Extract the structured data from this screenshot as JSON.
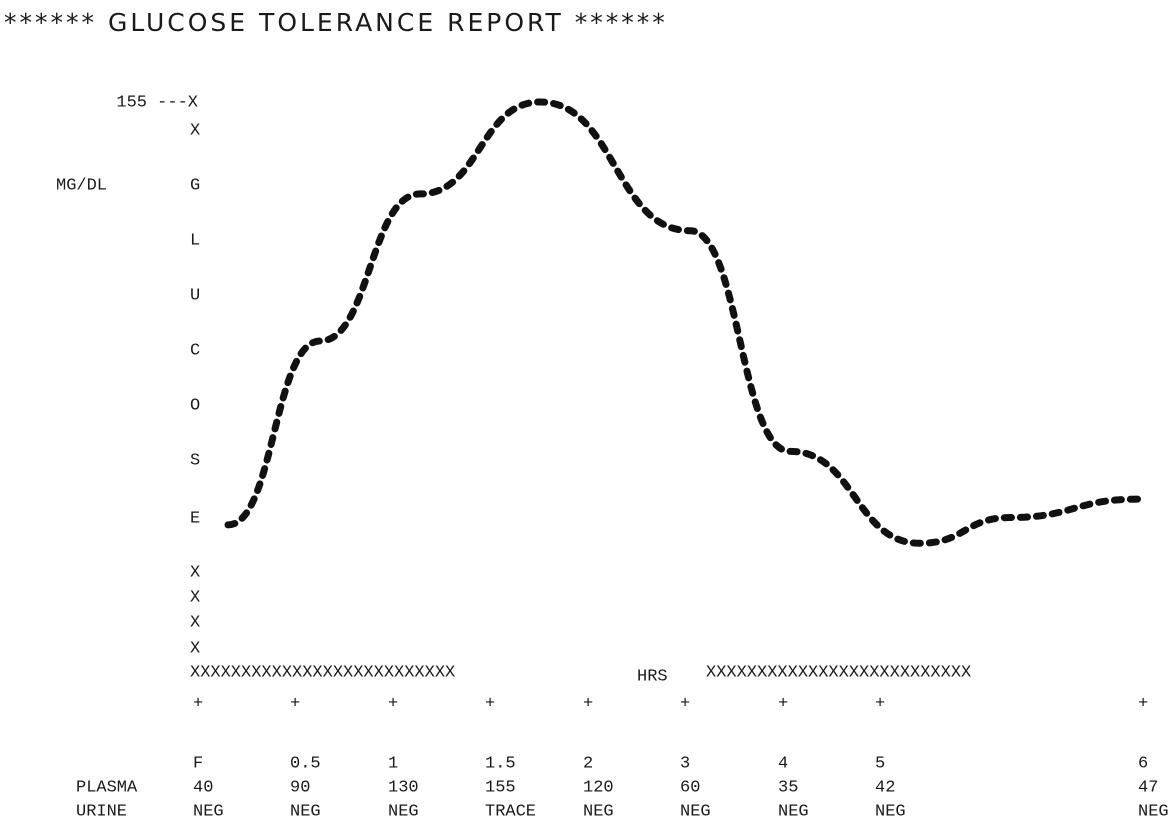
{
  "chart_data": {
    "type": "line",
    "title": "****** GLUCOSE TOLERANCE REPORT ******",
    "y_axis_label": "MG/DL",
    "y_axis_letters": [
      "X",
      "G",
      "L",
      "U",
      "C",
      "O",
      "S",
      "E",
      "X",
      "X",
      "X",
      "X"
    ],
    "x_axis_left": "XXXXXXXXXXXXXXXXXXXXXXXXXX",
    "x_axis_label": "HRS",
    "x_axis_right": "XXXXXXXXXXXXXXXXXXXXXXXXXX",
    "tick_symbol": "+",
    "ylim": [
      0,
      155
    ],
    "yticks": [
      {
        "value": 155,
        "label": "155 ---X"
      }
    ],
    "categories": [
      "F",
      "0.5",
      "1",
      "1.5",
      "2",
      "3",
      "4",
      "5",
      "6"
    ],
    "series": [
      {
        "name": "PLASMA",
        "color": "#111111",
        "values": [
          40,
          90,
          130,
          155,
          120,
          60,
          35,
          42,
          47
        ]
      }
    ],
    "urine": {
      "name": "URINE",
      "values": [
        "NEG",
        "NEG",
        "NEG",
        "TRACE",
        "NEG",
        "NEG",
        "NEG",
        "NEG",
        "NEG"
      ]
    }
  }
}
